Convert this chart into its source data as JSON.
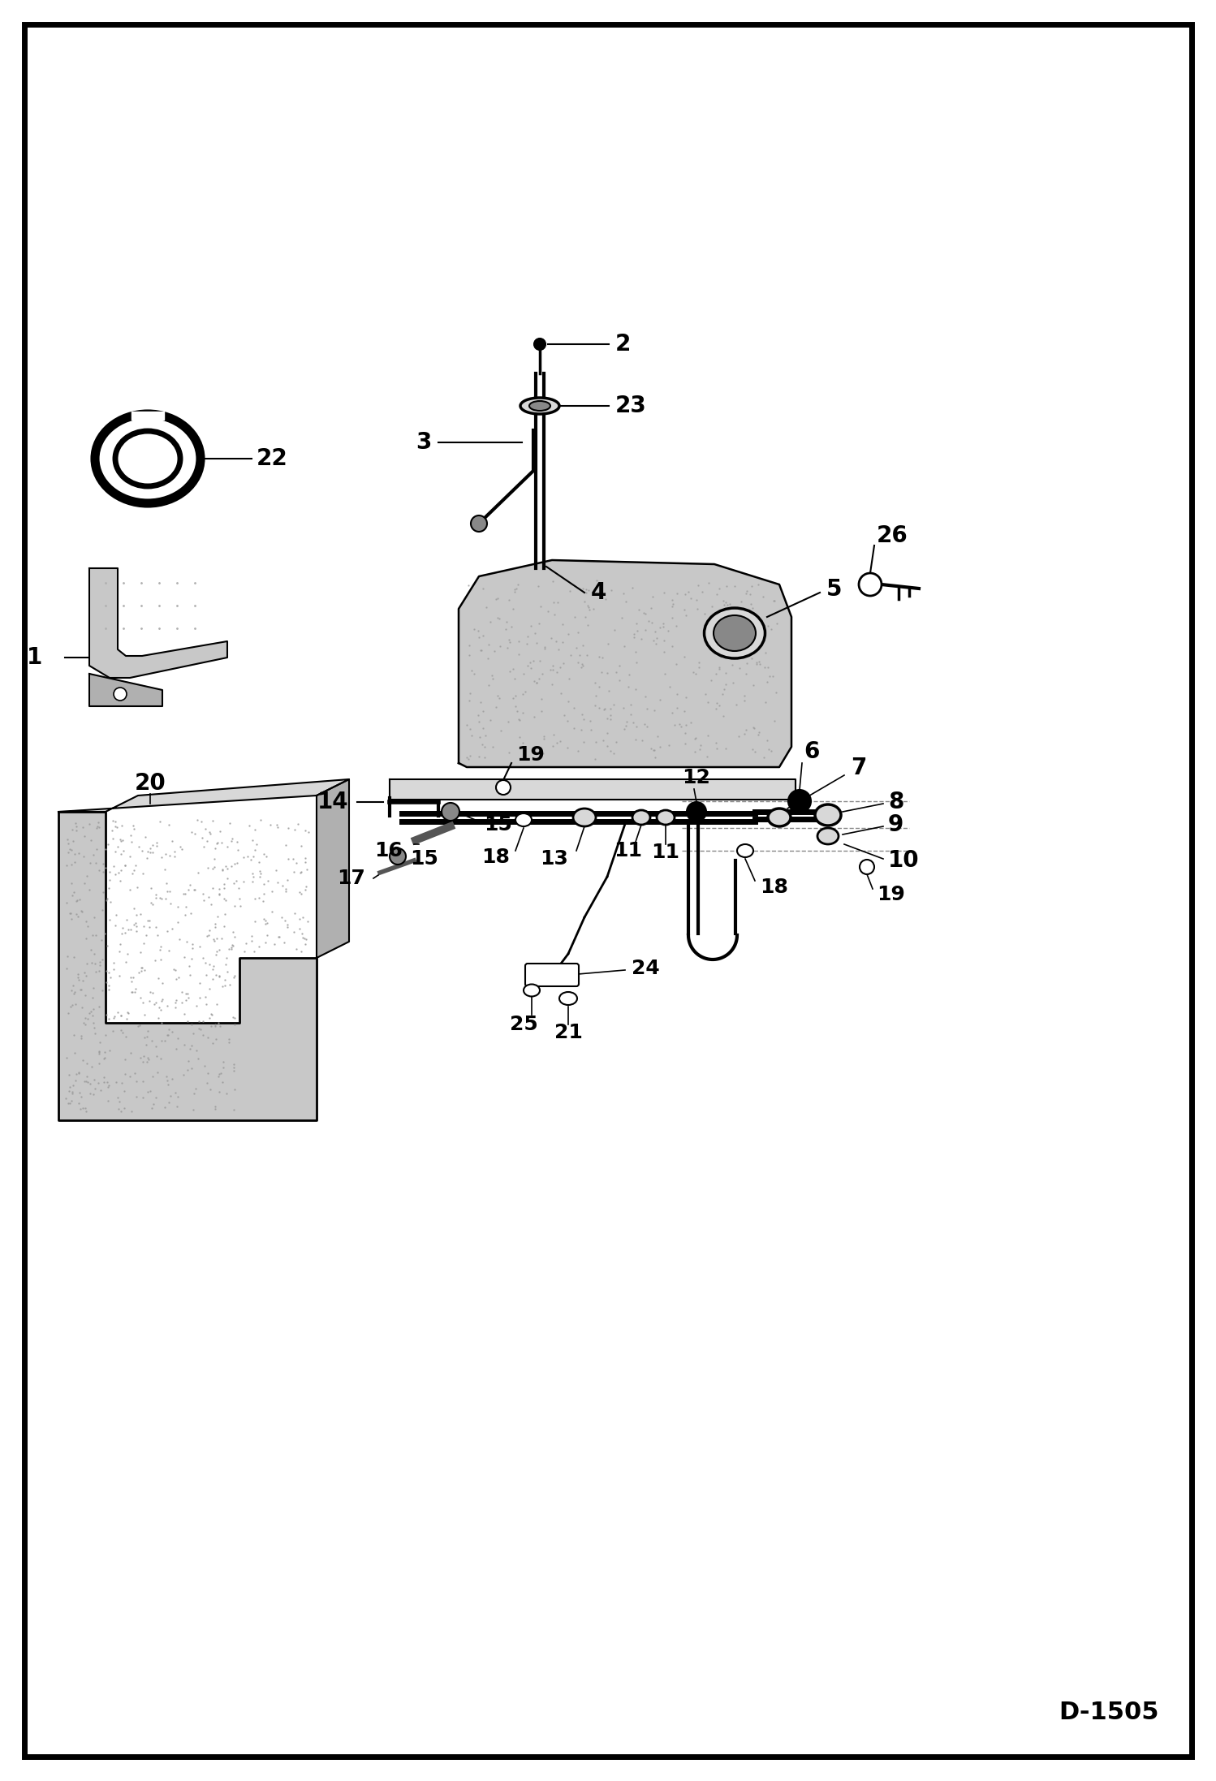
{
  "background_color": "#ffffff",
  "border_color": "#000000",
  "border_linewidth": 5,
  "diagram_label": "D-1505",
  "fig_width": 14.98,
  "fig_height": 21.94,
  "dpi": 100,
  "gray_light": "#d8d8d8",
  "gray_med": "#b0b0b0",
  "gray_dark": "#888888",
  "gray_stipple": "#c8c8c8"
}
